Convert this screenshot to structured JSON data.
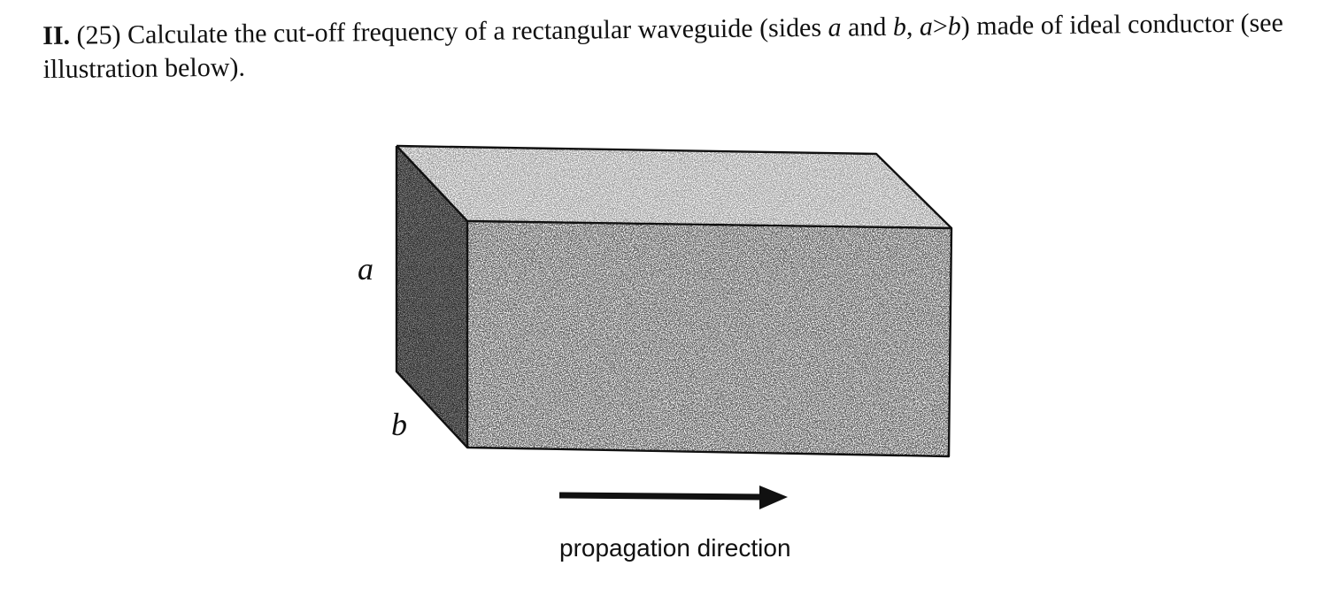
{
  "problem": {
    "number": "II.",
    "points": "(25)",
    "text_1": " Calculate the cut-off frequency of a rectangular waveguide (sides ",
    "var_a": "a",
    "text_2": " and ",
    "var_b": "b",
    "text_3": ", ",
    "cond_a": "a",
    "cond_gt": ">",
    "cond_b": "b",
    "text_4": ") made of ideal conductor (see illustration below)."
  },
  "figure": {
    "label_a": "a",
    "label_b": "b",
    "caption": "propagation direction"
  },
  "colors": {
    "ink": "#111111",
    "end_face": "#2a2a2a",
    "box_fill": "#f4f4f4"
  },
  "icons": {
    "arrow": "right-arrow-icon"
  }
}
